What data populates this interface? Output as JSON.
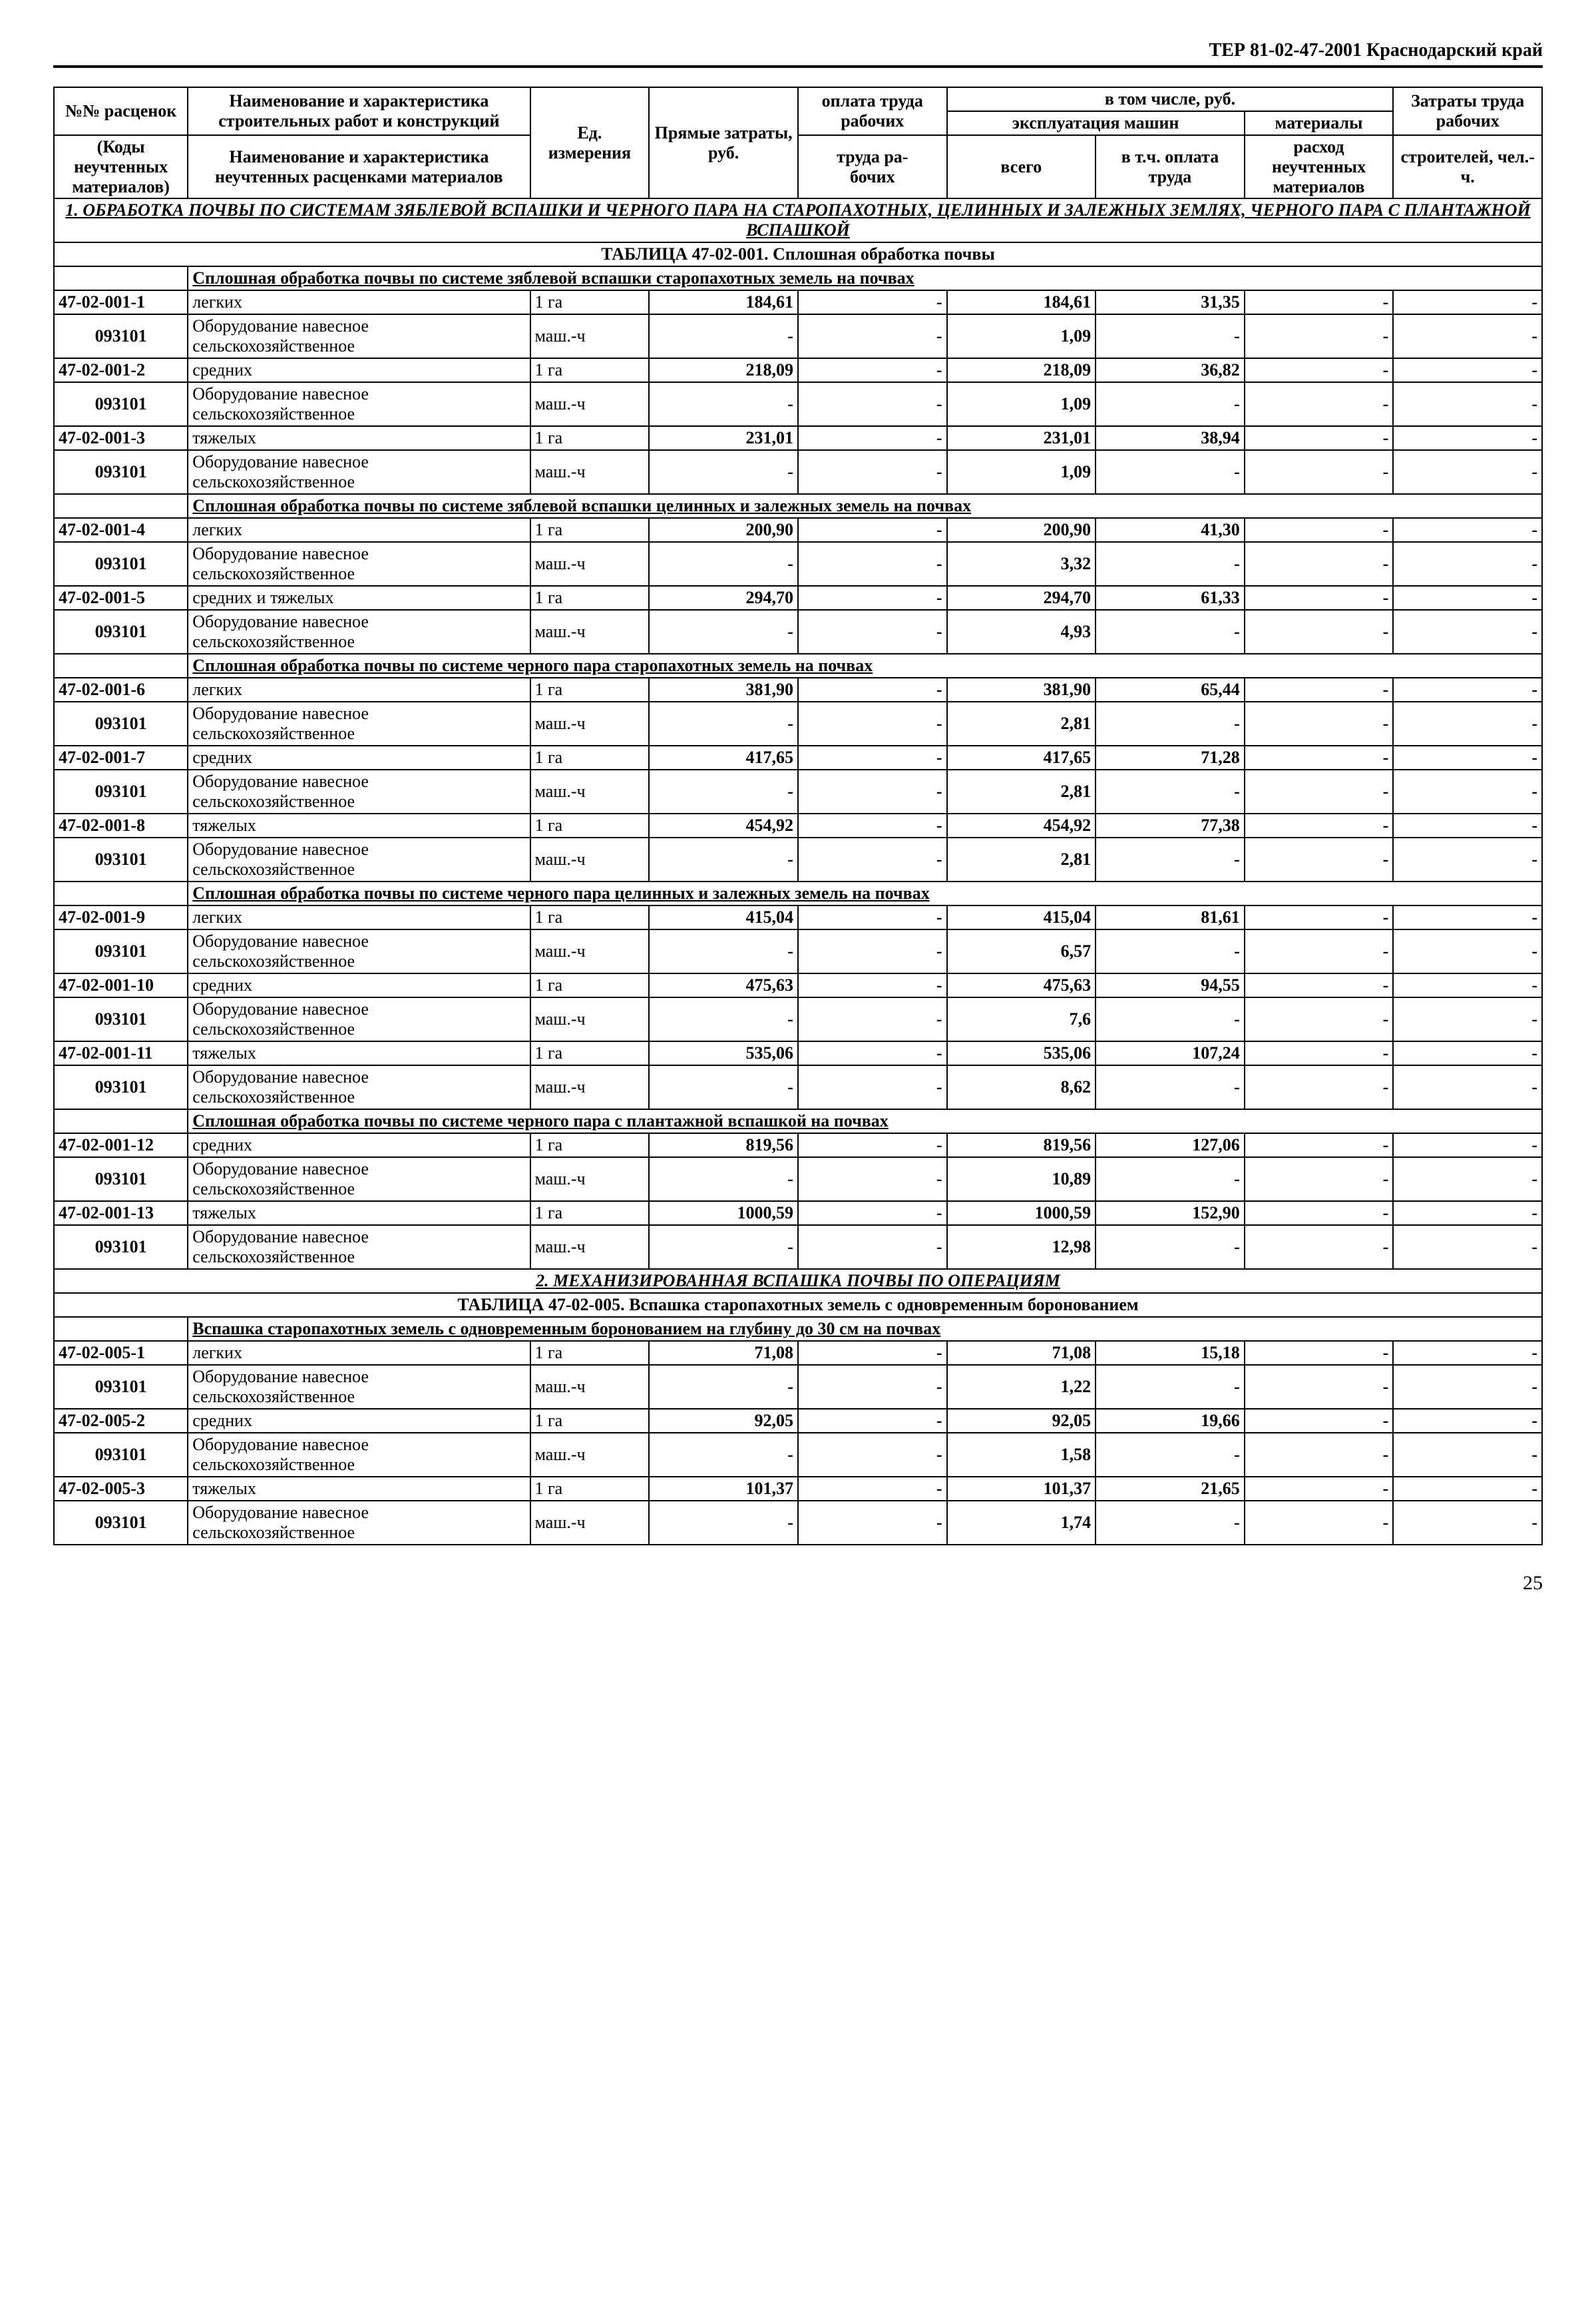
{
  "doc_header": "ТЕР 81-02-47-2001  Краснодарский край",
  "page_number": "25",
  "col": {
    "c1a": "№№ расценок",
    "c1b": "(Коды неучтенных материалов)",
    "c2a": "Наименование и характеристика строительных работ и конструкций",
    "c2b": "Наименование и характеристика неучтенных расценками материалов",
    "c3": "Ед. измерения",
    "c4": "Прямые затраты, руб.",
    "c5": "оплата труда рабочих",
    "c6g": "в том числе, руб.",
    "c6a": "эксплуатация машин",
    "c6b": "всего",
    "c6c": "в т.ч. оплата труда",
    "c7": "материалы",
    "c7b": "расход неучтенных материалов",
    "c8": "Затраты труда рабочих",
    "c8b": "строителей, чел.-ч."
  },
  "sec1": "1. ОБРАБОТКА ПОЧВЫ ПО СИСТЕМАМ ЗЯБЛЕВОЙ ВСПАШКИ И ЧЕРНОГО ПАРА НА СТАРОПАХОТНЫХ, ЦЕЛИННЫХ И ЗАЛЕЖНЫХ ЗЕМЛЯХ, ЧЕРНОГО ПАРА С ПЛАНТАЖНОЙ ВСПАШКОЙ",
  "tbl1_caption": "ТАБЛИЦА  47-02-001.  Сплошная обработка почвы",
  "sub1": "Сплошная обработка почвы по системе зяблевой вспашки старопахотных земель на почвах",
  "sub2": "Сплошная обработка почвы по системе зяблевой вспашки целинных и залежных земель на почвах",
  "sub3": "Сплошная обработка почвы по системе черного пара старопахотных земель на почвах",
  "sub4": "Сплошная обработка почвы по системе черного пара целинных и залежных земель на почвах",
  "sub5": "Сплошная обработка почвы по системе черного пара с плантажной вспашкой на почвах",
  "sec2": "2. МЕХАНИЗИРОВАННАЯ ВСПАШКА ПОЧВЫ ПО ОПЕРАЦИЯМ",
  "tbl2_caption": "ТАБЛИЦА  47-02-005.  Вспашка старопахотных земель с одновременным боронованием",
  "sub6": "Вспашка старопахотных земель с одновременным боронованием на глубину до 30 см на почвах",
  "equip_text": "Оборудование навесное сельскохозяйственное",
  "unit_ga": "1 га",
  "unit_mch": "маш.-ч",
  "dash": "-",
  "rows": [
    {
      "k": "sub",
      "ref": "sub1"
    },
    {
      "k": "r",
      "code": "47-02-001-1",
      "desc": "легких",
      "u": "ga",
      "v": [
        "184,61",
        "-",
        "184,61",
        "31,35",
        "-",
        "-"
      ]
    },
    {
      "k": "e",
      "code": "093101",
      "v": [
        "-",
        "-",
        "1,09",
        "-",
        "-",
        "-"
      ]
    },
    {
      "k": "r",
      "code": "47-02-001-2",
      "desc": "средних",
      "u": "ga",
      "v": [
        "218,09",
        "-",
        "218,09",
        "36,82",
        "-",
        "-"
      ]
    },
    {
      "k": "e",
      "code": "093101",
      "v": [
        "-",
        "-",
        "1,09",
        "-",
        "-",
        "-"
      ]
    },
    {
      "k": "r",
      "code": "47-02-001-3",
      "desc": "тяжелых",
      "u": "ga",
      "v": [
        "231,01",
        "-",
        "231,01",
        "38,94",
        "-",
        "-"
      ]
    },
    {
      "k": "e",
      "code": "093101",
      "v": [
        "-",
        "-",
        "1,09",
        "-",
        "-",
        "-"
      ]
    },
    {
      "k": "sub",
      "ref": "sub2"
    },
    {
      "k": "r",
      "code": "47-02-001-4",
      "desc": "легких",
      "u": "ga",
      "v": [
        "200,90",
        "-",
        "200,90",
        "41,30",
        "-",
        "-"
      ]
    },
    {
      "k": "e",
      "code": "093101",
      "v": [
        "-",
        "-",
        "3,32",
        "-",
        "-",
        "-"
      ]
    },
    {
      "k": "r",
      "code": "47-02-001-5",
      "desc": "средних и тяжелых",
      "u": "ga",
      "v": [
        "294,70",
        "-",
        "294,70",
        "61,33",
        "-",
        "-"
      ]
    },
    {
      "k": "e",
      "code": "093101",
      "v": [
        "-",
        "-",
        "4,93",
        "-",
        "-",
        "-"
      ]
    },
    {
      "k": "sub",
      "ref": "sub3"
    },
    {
      "k": "r",
      "code": "47-02-001-6",
      "desc": "легких",
      "u": "ga",
      "v": [
        "381,90",
        "-",
        "381,90",
        "65,44",
        "-",
        "-"
      ]
    },
    {
      "k": "e",
      "code": "093101",
      "v": [
        "-",
        "-",
        "2,81",
        "-",
        "-",
        "-"
      ]
    },
    {
      "k": "r",
      "code": "47-02-001-7",
      "desc": "средних",
      "u": "ga",
      "v": [
        "417,65",
        "-",
        "417,65",
        "71,28",
        "-",
        "-"
      ]
    },
    {
      "k": "e",
      "code": "093101",
      "v": [
        "-",
        "-",
        "2,81",
        "-",
        "-",
        "-"
      ]
    },
    {
      "k": "r",
      "code": "47-02-001-8",
      "desc": "тяжелых",
      "u": "ga",
      "v": [
        "454,92",
        "-",
        "454,92",
        "77,38",
        "-",
        "-"
      ]
    },
    {
      "k": "e",
      "code": "093101",
      "v": [
        "-",
        "-",
        "2,81",
        "-",
        "-",
        "-"
      ]
    },
    {
      "k": "sub",
      "ref": "sub4"
    },
    {
      "k": "r",
      "code": "47-02-001-9",
      "desc": "легких",
      "u": "ga",
      "v": [
        "415,04",
        "-",
        "415,04",
        "81,61",
        "-",
        "-"
      ]
    },
    {
      "k": "e",
      "code": "093101",
      "v": [
        "-",
        "-",
        "6,57",
        "-",
        "-",
        "-"
      ]
    },
    {
      "k": "r",
      "code": "47-02-001-10",
      "desc": "средних",
      "u": "ga",
      "v": [
        "475,63",
        "-",
        "475,63",
        "94,55",
        "-",
        "-"
      ]
    },
    {
      "k": "e",
      "code": "093101",
      "v": [
        "-",
        "-",
        "7,6",
        "-",
        "-",
        "-"
      ]
    },
    {
      "k": "r",
      "code": "47-02-001-11",
      "desc": "тяжелых",
      "u": "ga",
      "v": [
        "535,06",
        "-",
        "535,06",
        "107,24",
        "-",
        "-"
      ]
    },
    {
      "k": "e",
      "code": "093101",
      "v": [
        "-",
        "-",
        "8,62",
        "-",
        "-",
        "-"
      ]
    },
    {
      "k": "sub",
      "ref": "sub5"
    },
    {
      "k": "r",
      "code": "47-02-001-12",
      "desc": "средних",
      "u": "ga",
      "v": [
        "819,56",
        "-",
        "819,56",
        "127,06",
        "-",
        "-"
      ]
    },
    {
      "k": "e",
      "code": "093101",
      "v": [
        "-",
        "-",
        "10,89",
        "-",
        "-",
        "-"
      ]
    },
    {
      "k": "r",
      "code": "47-02-001-13",
      "desc": "тяжелых",
      "u": "ga",
      "v": [
        "1000,59",
        "-",
        "1000,59",
        "152,90",
        "-",
        "-"
      ]
    },
    {
      "k": "e",
      "code": "093101",
      "v": [
        "-",
        "-",
        "12,98",
        "-",
        "-",
        "-"
      ]
    },
    {
      "k": "sec",
      "ref": "sec2"
    },
    {
      "k": "cap",
      "ref": "tbl2_caption"
    },
    {
      "k": "sub",
      "ref": "sub6"
    },
    {
      "k": "r",
      "code": "47-02-005-1",
      "desc": "легких",
      "u": "ga",
      "v": [
        "71,08",
        "-",
        "71,08",
        "15,18",
        "-",
        "-"
      ]
    },
    {
      "k": "e",
      "code": "093101",
      "v": [
        "-",
        "-",
        "1,22",
        "-",
        "-",
        "-"
      ]
    },
    {
      "k": "r",
      "code": "47-02-005-2",
      "desc": "средних",
      "u": "ga",
      "v": [
        "92,05",
        "-",
        "92,05",
        "19,66",
        "-",
        "-"
      ]
    },
    {
      "k": "e",
      "code": "093101",
      "v": [
        "-",
        "-",
        "1,58",
        "-",
        "-",
        "-"
      ]
    },
    {
      "k": "r",
      "code": "47-02-005-3",
      "desc": "тяжелых",
      "u": "ga",
      "v": [
        "101,37",
        "-",
        "101,37",
        "21,65",
        "-",
        "-"
      ]
    },
    {
      "k": "e",
      "code": "093101",
      "v": [
        "-",
        "-",
        "1,74",
        "-",
        "-",
        "-"
      ]
    }
  ]
}
